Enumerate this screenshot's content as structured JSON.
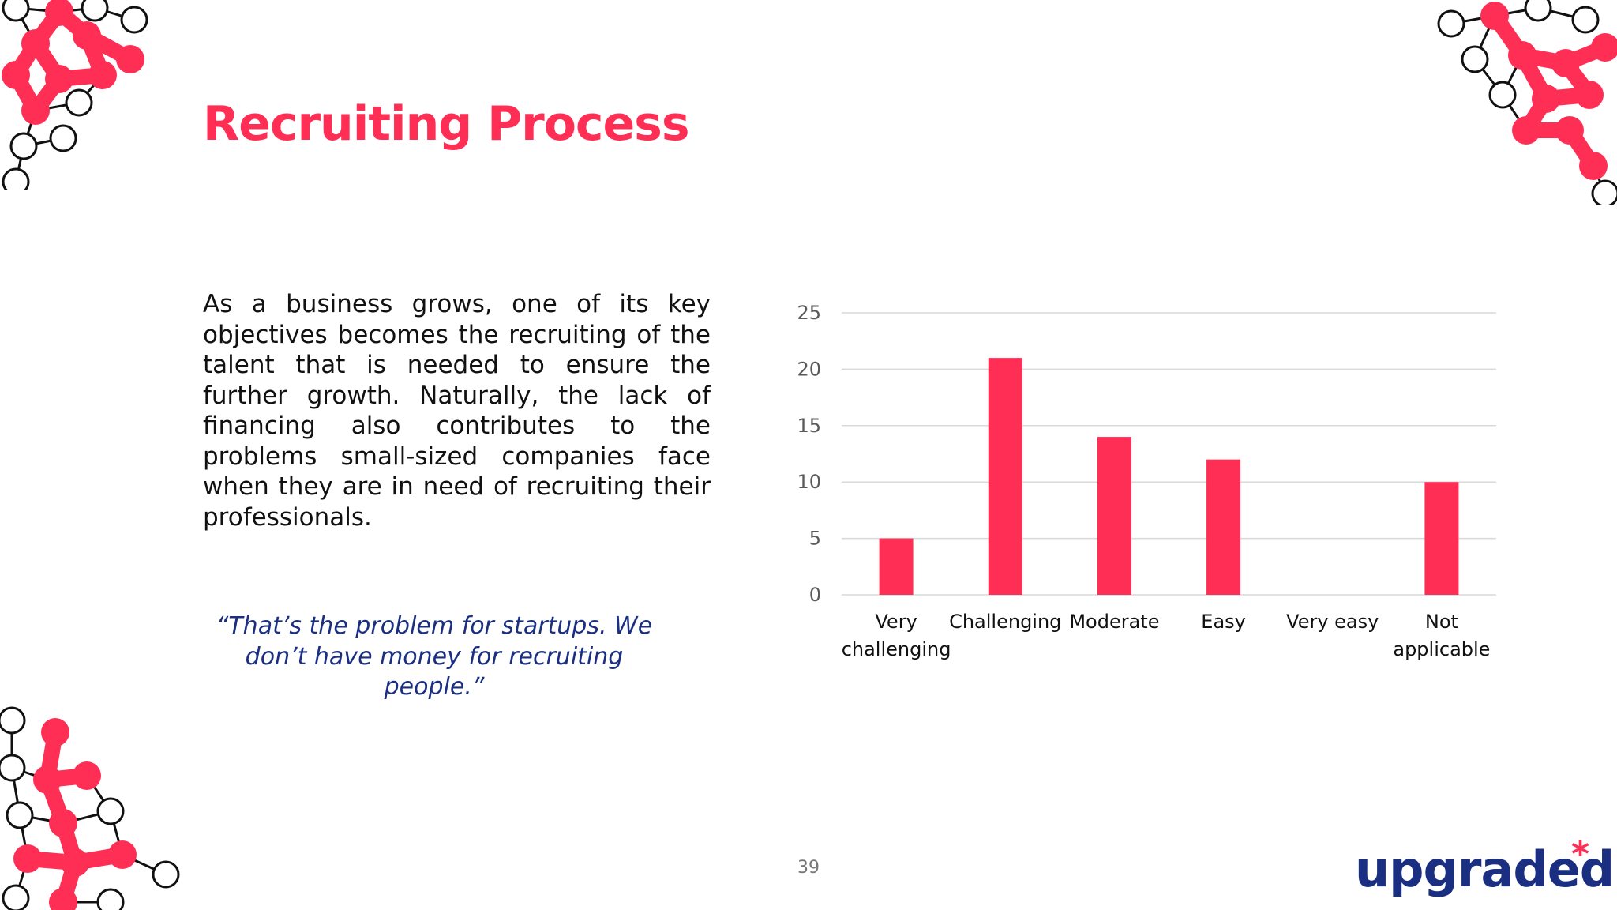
{
  "slide": {
    "title": "Recruiting Process",
    "body": "As a business grows, one of its key objectives becomes the recruiting of the talent that is needed to ensure the further growth. Naturally, the lack of financing also contributes to the problems small-sized companies face when they are in need of recruiting their professionals.",
    "quote": "“That’s the problem for startups. We don’t have money for recruiting people.”",
    "page_number": "39",
    "logo_text": "upgraded",
    "logo_mark": "*"
  },
  "colors": {
    "accent": "#ff2e55",
    "brand_blue": "#1b2f82",
    "bar": "#ff2e55",
    "grid": "#d9d9d9",
    "tick_text": "#595959",
    "category_text": "#111111"
  },
  "decor": {
    "corner_pattern": "molecule-network-pattern"
  },
  "chart_data": {
    "type": "bar",
    "categories": [
      [
        "Very",
        "challenging"
      ],
      [
        "Challenging"
      ],
      [
        "Moderate"
      ],
      [
        "Easy"
      ],
      [
        "Very easy"
      ],
      [
        "Not",
        "applicable"
      ]
    ],
    "values": [
      5,
      21,
      14,
      12,
      0,
      10
    ],
    "ylim": [
      0,
      25
    ],
    "yticks": [
      0,
      5,
      10,
      15,
      20,
      25
    ],
    "grid": true,
    "legend": "none",
    "title": "",
    "xlabel": "",
    "ylabel": ""
  }
}
